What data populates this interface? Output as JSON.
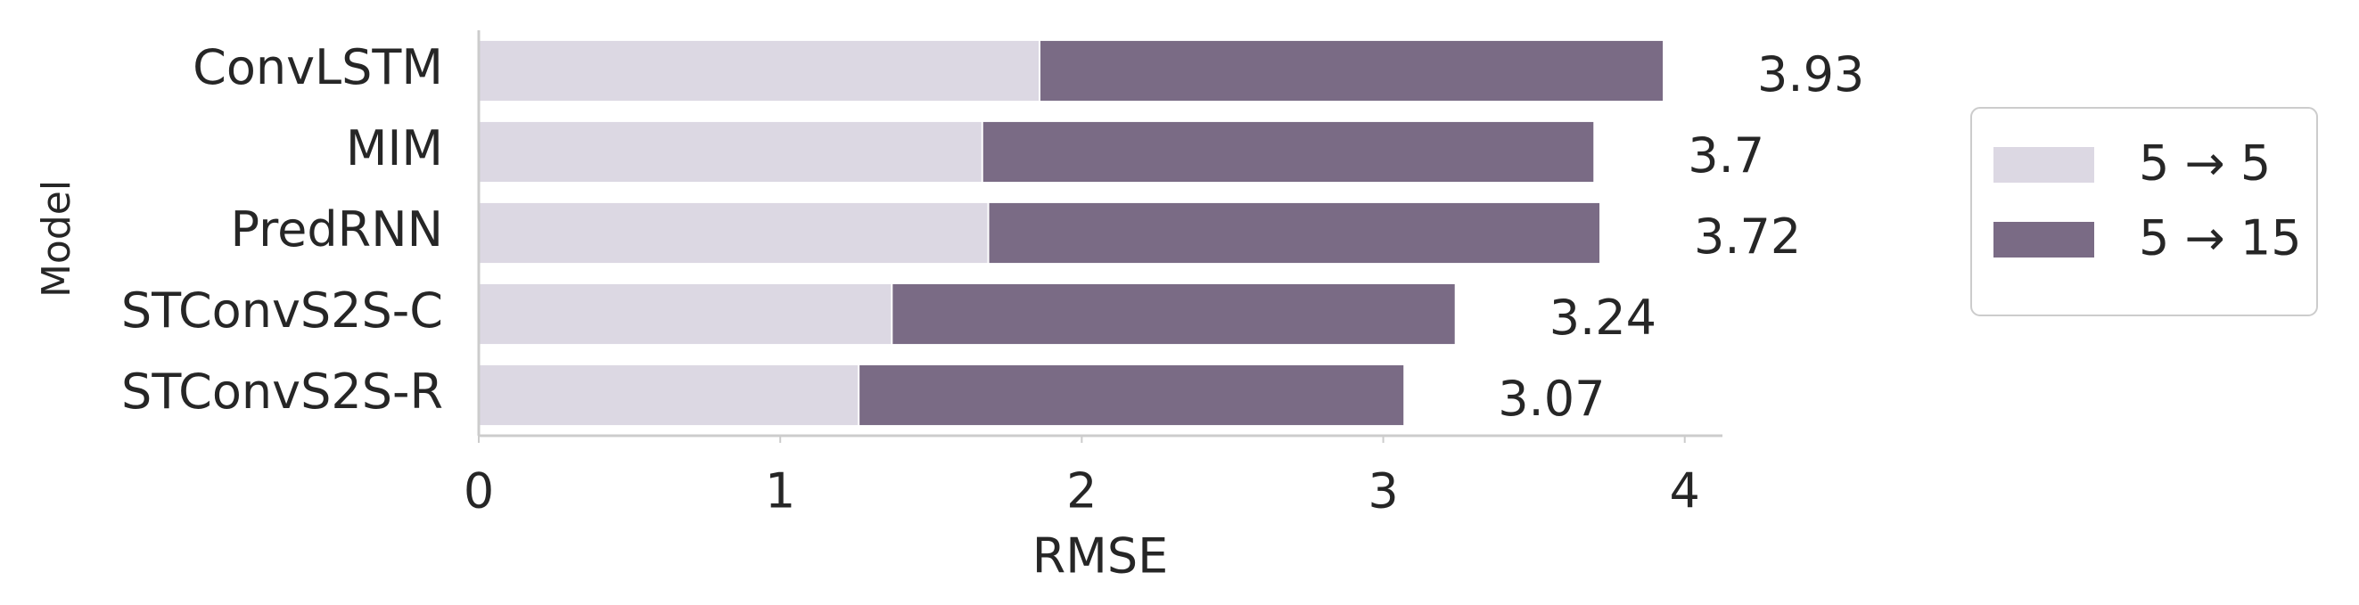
{
  "chart_data": {
    "type": "bar",
    "orientation": "horizontal",
    "overlap": true,
    "x_label": "RMSE",
    "y_label": "Model",
    "categories": [
      "ConvLSTM",
      "MIM",
      "PredRNN",
      "STConvS2S-C",
      "STConvS2S-R"
    ],
    "series": [
      {
        "name": "5 → 5",
        "color": "#dcd8e3",
        "values": [
          1.86,
          1.67,
          1.69,
          1.37,
          1.26
        ]
      },
      {
        "name": "5 → 15",
        "color": "#7a6b85",
        "values": [
          3.93,
          3.7,
          3.72,
          3.24,
          3.07
        ],
        "show_value_labels": true
      }
    ],
    "xlim": [
      0,
      4.125
    ],
    "xticks": [
      0,
      1,
      2,
      3,
      4
    ],
    "grid": false,
    "legend": "right"
  }
}
